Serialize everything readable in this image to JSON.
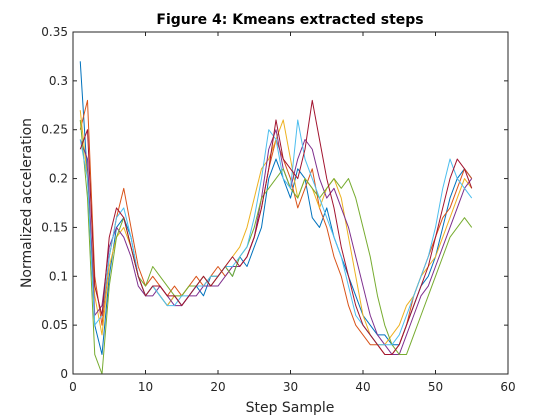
{
  "chart_data": {
    "type": "line",
    "title": "Figure 4: Kmeans extracted steps",
    "xlabel": "Step Sample",
    "ylabel": "Normalized acceleration",
    "xlim": [
      0,
      60
    ],
    "ylim": [
      0,
      0.35
    ],
    "xticks": [
      0,
      10,
      20,
      30,
      40,
      50,
      60
    ],
    "yticks": [
      0,
      0.05,
      0.1,
      0.15,
      0.2,
      0.25,
      0.3,
      0.35
    ],
    "xtick_labels": [
      "0",
      "10",
      "20",
      "30",
      "40",
      "50",
      "60"
    ],
    "ytick_labels": [
      "0",
      "0.05",
      "0.1",
      "0.15",
      "0.2",
      "0.25",
      "0.3",
      "0.35"
    ],
    "grid": false,
    "box": true,
    "x": [
      1,
      2,
      3,
      4,
      5,
      6,
      7,
      8,
      9,
      10,
      11,
      12,
      13,
      14,
      15,
      16,
      17,
      18,
      19,
      20,
      21,
      22,
      23,
      24,
      25,
      26,
      27,
      28,
      29,
      30,
      31,
      32,
      33,
      34,
      35,
      36,
      37,
      38,
      39,
      40,
      41,
      42,
      43,
      44,
      45,
      46,
      47,
      48,
      49,
      50,
      51,
      52,
      53,
      54,
      55
    ],
    "series": [
      {
        "color": "#0072BD",
        "values": [
          0.32,
          0.2,
          0.05,
          0.02,
          0.1,
          0.15,
          0.16,
          0.14,
          0.1,
          0.08,
          0.09,
          0.08,
          0.07,
          0.08,
          0.07,
          0.08,
          0.09,
          0.08,
          0.1,
          0.1,
          0.11,
          0.1,
          0.12,
          0.11,
          0.13,
          0.15,
          0.2,
          0.22,
          0.2,
          0.18,
          0.21,
          0.2,
          0.16,
          0.15,
          0.17,
          0.14,
          0.12,
          0.1,
          0.08,
          0.06,
          0.05,
          0.04,
          0.04,
          0.03,
          0.03,
          0.05,
          0.07,
          0.09,
          0.1,
          0.12,
          0.15,
          0.18,
          0.2,
          0.21,
          0.2
        ]
      },
      {
        "color": "#D95319",
        "values": [
          0.25,
          0.28,
          0.1,
          0.05,
          0.12,
          0.16,
          0.19,
          0.15,
          0.11,
          0.09,
          0.1,
          0.09,
          0.08,
          0.09,
          0.08,
          0.09,
          0.1,
          0.09,
          0.1,
          0.11,
          0.1,
          0.11,
          0.11,
          0.12,
          0.14,
          0.17,
          0.21,
          0.24,
          0.22,
          0.2,
          0.17,
          0.19,
          0.21,
          0.17,
          0.15,
          0.12,
          0.1,
          0.07,
          0.05,
          0.04,
          0.03,
          0.03,
          0.02,
          0.02,
          0.03,
          0.05,
          0.08,
          0.1,
          0.12,
          0.14,
          0.16,
          0.17,
          0.19,
          0.21,
          0.2
        ]
      },
      {
        "color": "#EDB120",
        "values": [
          0.27,
          0.2,
          0.08,
          0.04,
          0.11,
          0.14,
          0.15,
          0.13,
          0.1,
          0.08,
          0.09,
          0.08,
          0.07,
          0.08,
          0.08,
          0.09,
          0.09,
          0.09,
          0.1,
          0.1,
          0.11,
          0.12,
          0.13,
          0.15,
          0.18,
          0.21,
          0.22,
          0.24,
          0.26,
          0.22,
          0.18,
          0.2,
          0.19,
          0.17,
          0.19,
          0.2,
          0.18,
          0.14,
          0.1,
          0.06,
          0.04,
          0.03,
          0.03,
          0.04,
          0.05,
          0.07,
          0.08,
          0.1,
          0.11,
          0.12,
          0.14,
          0.16,
          0.18,
          0.2,
          0.19
        ]
      },
      {
        "color": "#7E2F8E",
        "values": [
          0.24,
          0.22,
          0.06,
          0.07,
          0.13,
          0.15,
          0.14,
          0.12,
          0.09,
          0.08,
          0.08,
          0.09,
          0.08,
          0.07,
          0.07,
          0.08,
          0.08,
          0.09,
          0.09,
          0.09,
          0.1,
          0.11,
          0.11,
          0.12,
          0.14,
          0.18,
          0.23,
          0.25,
          0.21,
          0.19,
          0.22,
          0.24,
          0.23,
          0.2,
          0.18,
          0.19,
          0.17,
          0.15,
          0.12,
          0.09,
          0.06,
          0.04,
          0.03,
          0.02,
          0.02,
          0.04,
          0.06,
          0.08,
          0.09,
          0.11,
          0.13,
          0.15,
          0.17,
          0.19,
          0.2
        ]
      },
      {
        "color": "#77AC30",
        "values": [
          0.26,
          0.18,
          0.02,
          0.0,
          0.09,
          0.14,
          0.16,
          0.13,
          0.1,
          0.09,
          0.11,
          0.1,
          0.09,
          0.08,
          0.08,
          0.09,
          0.09,
          0.1,
          0.09,
          0.1,
          0.11,
          0.1,
          0.12,
          0.13,
          0.15,
          0.18,
          0.19,
          0.2,
          0.21,
          0.19,
          0.18,
          0.2,
          0.19,
          0.18,
          0.19,
          0.2,
          0.19,
          0.2,
          0.18,
          0.15,
          0.12,
          0.08,
          0.05,
          0.03,
          0.02,
          0.02,
          0.04,
          0.06,
          0.08,
          0.1,
          0.12,
          0.14,
          0.15,
          0.16,
          0.15
        ]
      },
      {
        "color": "#4DBEEE",
        "values": [
          0.24,
          0.2,
          0.05,
          0.06,
          0.12,
          0.16,
          0.17,
          0.14,
          0.1,
          0.08,
          0.09,
          0.08,
          0.07,
          0.07,
          0.08,
          0.08,
          0.09,
          0.09,
          0.1,
          0.1,
          0.11,
          0.11,
          0.12,
          0.13,
          0.16,
          0.2,
          0.25,
          0.24,
          0.2,
          0.19,
          0.26,
          0.22,
          0.2,
          0.18,
          0.16,
          0.14,
          0.12,
          0.09,
          0.06,
          0.05,
          0.04,
          0.03,
          0.03,
          0.03,
          0.04,
          0.06,
          0.08,
          0.1,
          0.12,
          0.15,
          0.19,
          0.22,
          0.2,
          0.19,
          0.18
        ]
      },
      {
        "color": "#A2142F",
        "values": [
          0.23,
          0.25,
          0.09,
          0.06,
          0.14,
          0.17,
          0.16,
          0.13,
          0.1,
          0.08,
          0.09,
          0.09,
          0.08,
          0.08,
          0.07,
          0.08,
          0.09,
          0.1,
          0.09,
          0.1,
          0.11,
          0.12,
          0.11,
          0.12,
          0.14,
          0.17,
          0.21,
          0.26,
          0.22,
          0.21,
          0.2,
          0.23,
          0.28,
          0.24,
          0.2,
          0.17,
          0.13,
          0.1,
          0.07,
          0.05,
          0.04,
          0.03,
          0.02,
          0.02,
          0.03,
          0.05,
          0.07,
          0.09,
          0.11,
          0.14,
          0.17,
          0.2,
          0.22,
          0.21,
          0.19
        ]
      }
    ]
  }
}
